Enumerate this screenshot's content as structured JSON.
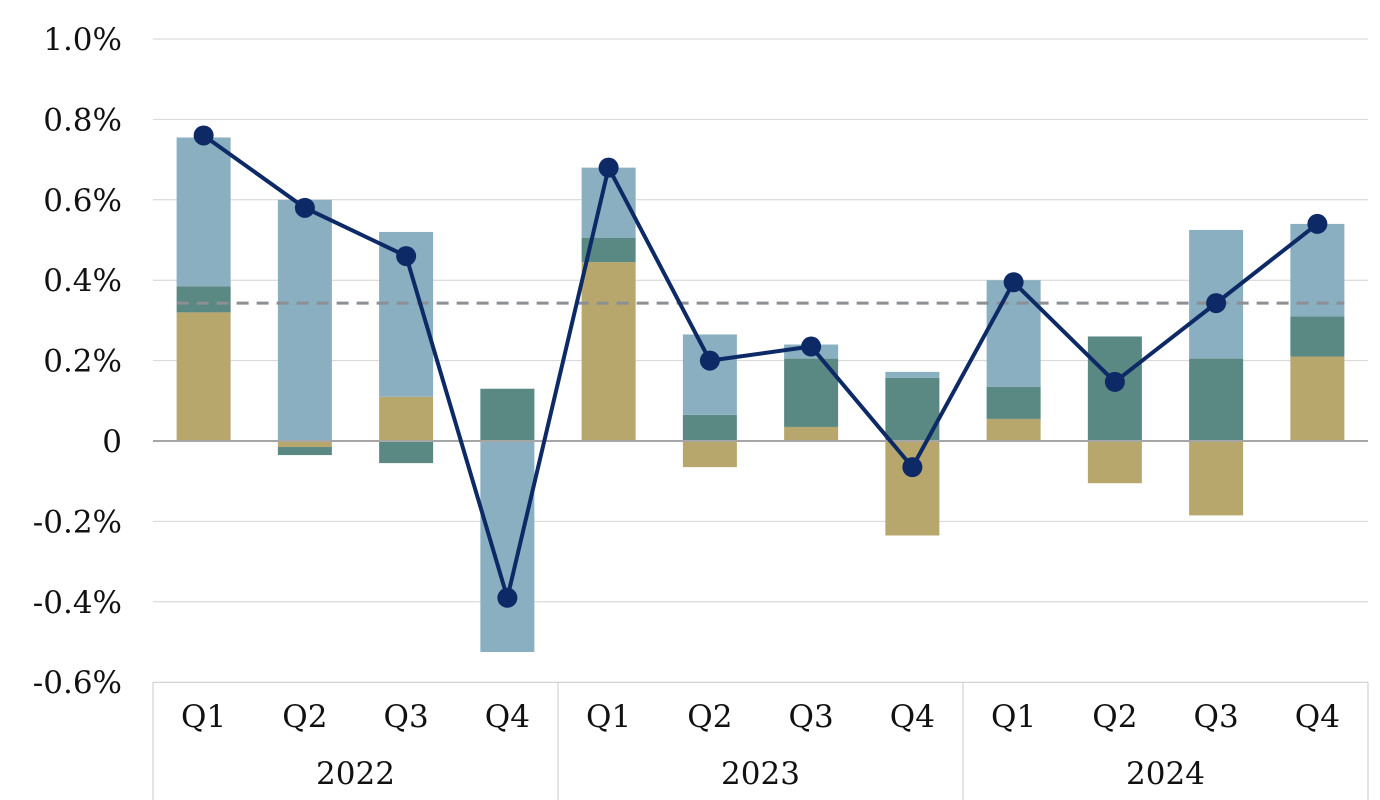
{
  "chart_data": {
    "type": "bar",
    "subtype": "stacked-bar-with-line",
    "categories": [
      "Q1",
      "Q2",
      "Q3",
      "Q4",
      "Q1",
      "Q2",
      "Q3",
      "Q4",
      "Q1",
      "Q2",
      "Q3",
      "Q4"
    ],
    "groups": [
      {
        "label": "2022",
        "quarters": 4
      },
      {
        "label": "2023",
        "quarters": 4
      },
      {
        "label": "2024",
        "quarters": 4
      }
    ],
    "y_tick_labels": [
      "1.0%",
      "0.8%",
      "0.6%",
      "0.4%",
      "0.2%",
      "0",
      "-0.2%",
      "-0.4%",
      "-0.6%"
    ],
    "y_ticks": [
      1.0,
      0.8,
      0.6,
      0.4,
      0.2,
      0,
      -0.2,
      -0.4,
      -0.6
    ],
    "ylim": [
      -0.6,
      1.0
    ],
    "series": [
      {
        "name": "tan component",
        "kind": "bar",
        "color": "#b8a76d",
        "values": [
          0.32,
          -0.015,
          0.11,
          0,
          0.445,
          -0.065,
          0.035,
          -0.235,
          0.055,
          -0.105,
          -0.185,
          0.21
        ]
      },
      {
        "name": "dark teal component",
        "kind": "bar",
        "color": "#5a8882",
        "values": [
          0.065,
          -0.02,
          -0.055,
          0.13,
          0.06,
          0.065,
          0.17,
          0.157,
          0.08,
          0.26,
          0.205,
          0.1
        ]
      },
      {
        "name": "light blue component",
        "kind": "bar",
        "color": "#8aafc0",
        "values": [
          0.37,
          0.6,
          0.41,
          -0.525,
          0.175,
          0.2,
          0.035,
          0.015,
          0.265,
          0,
          0.32,
          0.23
        ]
      },
      {
        "name": "total",
        "kind": "line",
        "color": "#0d2a66",
        "values": [
          0.76,
          0.58,
          0.46,
          -0.39,
          0.68,
          0.2,
          0.235,
          -0.065,
          0.395,
          0.147,
          0.343,
          0.54
        ]
      }
    ],
    "reference_line": {
      "value": 0.343,
      "style": "dashed",
      "color": "#8c8f94"
    },
    "grid": true,
    "legend": "none",
    "title": "",
    "xlabel": "",
    "ylabel": ""
  }
}
